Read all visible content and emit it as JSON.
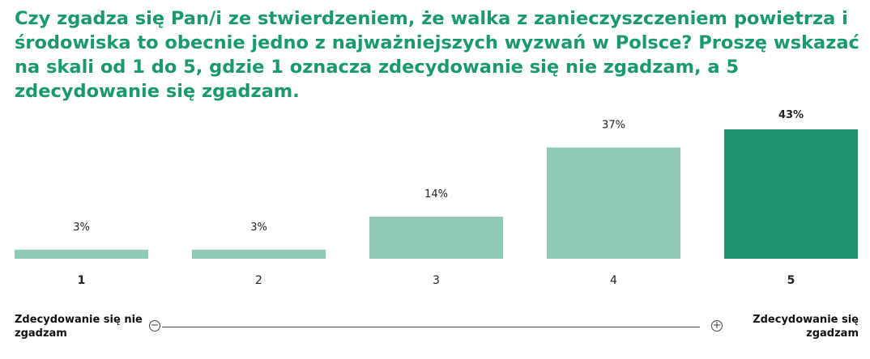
{
  "title": "Czy zgadza się Pan/i ze stwierdzeniem, że walka z zanieczyszczeniem powietrza i środowiska to obecnie jedno z najważniejszych wyzwań w Polsce? Proszę wskazać na skali od 1 do 5, gdzie 1 oznacza zdecydowanie się nie zgadzam, a 5 zdecydowanie się zgadzam.",
  "scale": {
    "left_label": "Zdecydowanie się nie zgadzam",
    "right_label": "Zdecydowanie się zgadzam",
    "minus_symbol": "−",
    "plus_symbol": "+"
  },
  "colors": {
    "bar_light": "#90cab6",
    "bar_highlight": "#1e9470",
    "text": "#222222",
    "title": "#1a9a6c"
  },
  "chart_data": {
    "type": "bar",
    "categories": [
      "1",
      "2",
      "3",
      "4",
      "5"
    ],
    "values": [
      3,
      3,
      14,
      37,
      43
    ],
    "value_labels": [
      "3%",
      "3%",
      "14%",
      "37%",
      "43%"
    ],
    "highlight": [
      true,
      false,
      false,
      false,
      true
    ],
    "unit": "%",
    "ylim": [
      0,
      43
    ],
    "grid": false,
    "legend": "none"
  }
}
